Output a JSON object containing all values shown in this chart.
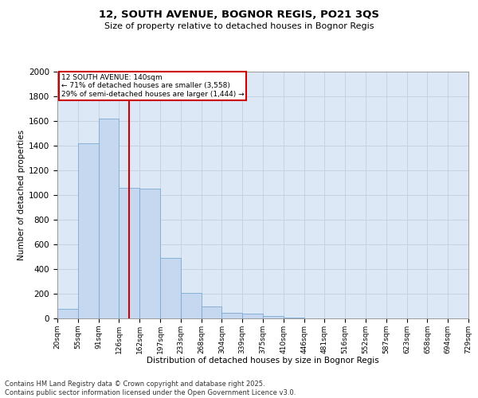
{
  "title1": "12, SOUTH AVENUE, BOGNOR REGIS, PO21 3QS",
  "title2": "Size of property relative to detached houses in Bognor Regis",
  "xlabel": "Distribution of detached houses by size in Bognor Regis",
  "ylabel": "Number of detached properties",
  "bin_labels": [
    "20sqm",
    "55sqm",
    "91sqm",
    "126sqm",
    "162sqm",
    "197sqm",
    "233sqm",
    "268sqm",
    "304sqm",
    "339sqm",
    "375sqm",
    "410sqm",
    "446sqm",
    "481sqm",
    "516sqm",
    "552sqm",
    "587sqm",
    "623sqm",
    "658sqm",
    "694sqm",
    "729sqm"
  ],
  "bar_values": [
    80,
    1420,
    1620,
    1060,
    1050,
    490,
    205,
    100,
    45,
    40,
    20,
    5,
    0,
    0,
    0,
    0,
    0,
    0,
    0,
    0
  ],
  "bar_color": "#c5d8f0",
  "bar_edge_color": "#7aaad4",
  "vline_color": "#cc0000",
  "annotation_title": "12 SOUTH AVENUE: 140sqm",
  "annotation_line1": "← 71% of detached houses are smaller (3,558)",
  "annotation_line2": "29% of semi-detached houses are larger (1,444) →",
  "annotation_box_color": "#cc0000",
  "ylim": [
    0,
    2000
  ],
  "yticks": [
    0,
    200,
    400,
    600,
    800,
    1000,
    1200,
    1400,
    1600,
    1800,
    2000
  ],
  "grid_color": "#c0cfe0",
  "background_color": "#dce8f5",
  "footer_line1": "Contains HM Land Registry data © Crown copyright and database right 2025.",
  "footer_line2": "Contains public sector information licensed under the Open Government Licence v3.0."
}
